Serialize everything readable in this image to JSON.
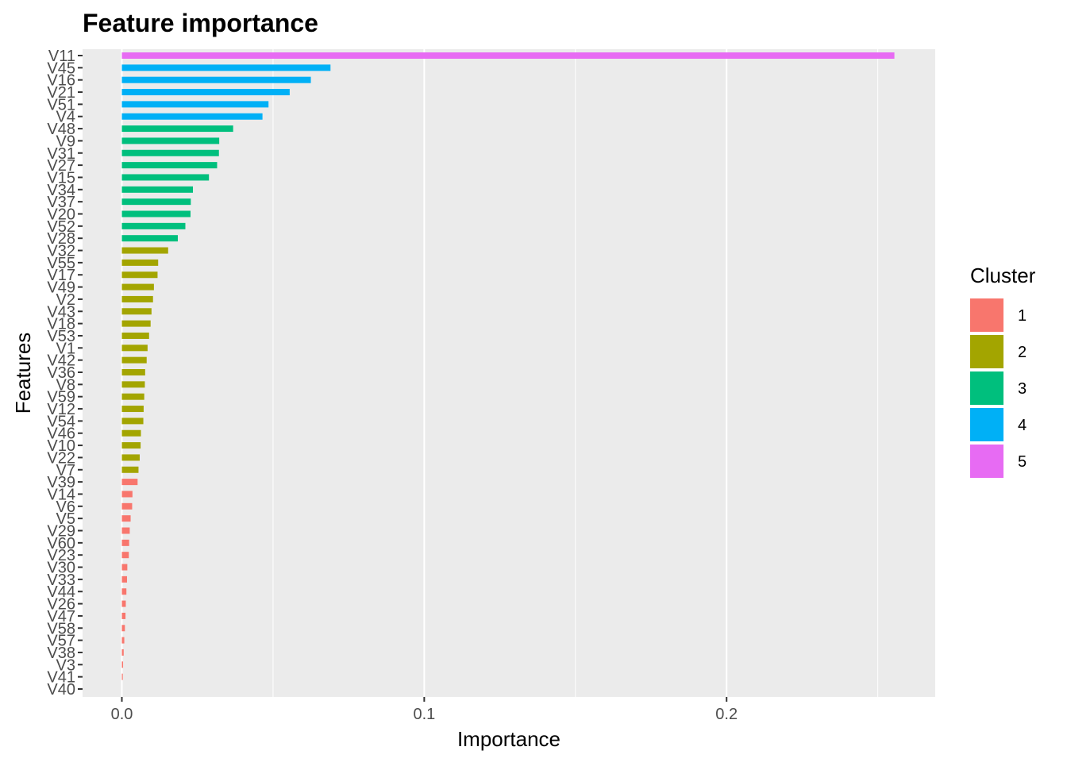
{
  "chart_data": {
    "type": "bar",
    "orientation": "horizontal",
    "title": "Feature importance",
    "xlabel": "Importance",
    "ylabel": "Features",
    "xlim": [
      -0.013,
      0.269
    ],
    "x_ticks": [
      0.0,
      0.1,
      0.2
    ],
    "x_tick_labels": [
      "0.0",
      "0.1",
      "0.2"
    ],
    "grid": true,
    "legend": {
      "title": "Cluster",
      "placement": "right",
      "entries": [
        {
          "label": "1",
          "color": "#F8766D"
        },
        {
          "label": "2",
          "color": "#A3A500"
        },
        {
          "label": "3",
          "color": "#00BF7D"
        },
        {
          "label": "4",
          "color": "#00B0F6"
        },
        {
          "label": "5",
          "color": "#E76BF3"
        }
      ]
    },
    "categories": [
      "V11",
      "V45",
      "V16",
      "V21",
      "V51",
      "V4",
      "V48",
      "V9",
      "V31",
      "V27",
      "V15",
      "V34",
      "V37",
      "V20",
      "V52",
      "V28",
      "V32",
      "V55",
      "V17",
      "V49",
      "V2",
      "V43",
      "V18",
      "V53",
      "V1",
      "V42",
      "V36",
      "V8",
      "V59",
      "V12",
      "V54",
      "V46",
      "V10",
      "V22",
      "V7",
      "V39",
      "V14",
      "V6",
      "V5",
      "V29",
      "V60",
      "V23",
      "V30",
      "V33",
      "V44",
      "V26",
      "V47",
      "V58",
      "V57",
      "V38",
      "V3",
      "V41",
      "V40"
    ],
    "values": [
      0.2555,
      0.069,
      0.0625,
      0.0555,
      0.0485,
      0.0465,
      0.0368,
      0.0322,
      0.0321,
      0.0315,
      0.0288,
      0.0235,
      0.0228,
      0.0227,
      0.021,
      0.0185,
      0.0153,
      0.012,
      0.0118,
      0.0106,
      0.0103,
      0.0098,
      0.0095,
      0.009,
      0.0085,
      0.0082,
      0.0077,
      0.0076,
      0.0074,
      0.0072,
      0.0071,
      0.0063,
      0.0062,
      0.0059,
      0.0055,
      0.0052,
      0.0035,
      0.0034,
      0.0029,
      0.0026,
      0.0024,
      0.0023,
      0.0018,
      0.0017,
      0.0015,
      0.0013,
      0.0012,
      0.001,
      0.0008,
      0.0006,
      0.0004,
      0.0003,
      0.0
    ],
    "clusters": [
      5,
      4,
      4,
      4,
      4,
      4,
      3,
      3,
      3,
      3,
      3,
      3,
      3,
      3,
      3,
      3,
      2,
      2,
      2,
      2,
      2,
      2,
      2,
      2,
      2,
      2,
      2,
      2,
      2,
      2,
      2,
      2,
      2,
      2,
      2,
      1,
      1,
      1,
      1,
      1,
      1,
      1,
      1,
      1,
      1,
      1,
      1,
      1,
      1,
      1,
      1,
      1,
      1
    ]
  }
}
